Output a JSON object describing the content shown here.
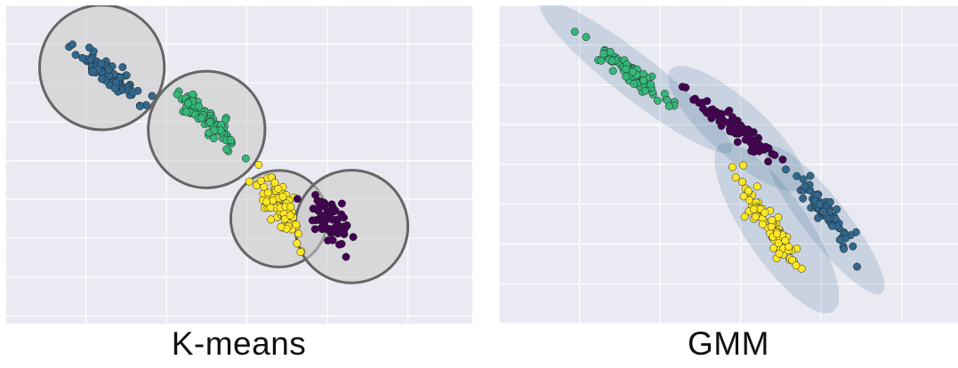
{
  "colors": {
    "background": "#eaeaf2",
    "grid": "#ffffff",
    "viridis_purple": "#440154",
    "viridis_blue": "#31688e",
    "viridis_green": "#35b779",
    "viridis_yellow": "#fde725",
    "kmeans_circle_fill": "#c8c8c8",
    "kmeans_circle_stroke": "#666666",
    "gmm_ellipse_fill": "#31688e"
  },
  "chart_data": [
    {
      "type": "scatter",
      "title": "K-means",
      "xlim": [
        0,
        11.6
      ],
      "ylim": [
        -8.2,
        0
      ],
      "grid": true,
      "legend": "none",
      "series": [
        {
          "color": "#31688e",
          "center": [
            2.6,
            -1.8
          ],
          "spread": [
            0.9,
            0.22
          ],
          "angle_deg": -40,
          "n": 90
        },
        {
          "color": "#35b779",
          "center": [
            5.0,
            -2.9
          ],
          "spread": [
            0.9,
            0.22
          ],
          "angle_deg": -40,
          "n": 90
        },
        {
          "color": "#fde725",
          "center": [
            6.8,
            -5.2
          ],
          "spread": [
            0.75,
            0.25
          ],
          "angle_deg": -58,
          "n": 90
        },
        {
          "color": "#440154",
          "center": [
            8.1,
            -5.6
          ],
          "spread": [
            0.6,
            0.3
          ],
          "angle_deg": -55,
          "n": 70
        }
      ],
      "circles": [
        {
          "center": [
            2.4,
            -1.6
          ],
          "radius": 1.55
        },
        {
          "center": [
            5.0,
            -3.2
          ],
          "radius": 1.45
        },
        {
          "center": [
            6.8,
            -5.5
          ],
          "radius": 1.2
        },
        {
          "center": [
            8.6,
            -5.7
          ],
          "radius": 1.4
        }
      ]
    },
    {
      "type": "scatter",
      "title": "GMM",
      "xlim": [
        0,
        11.4
      ],
      "ylim": [
        -8.0,
        0
      ],
      "grid": true,
      "legend": "none",
      "series": [
        {
          "color": "#35b779",
          "center": [
            3.3,
            -1.7
          ],
          "spread": [
            1.2,
            0.18
          ],
          "angle_deg": -38,
          "n": 80
        },
        {
          "color": "#440154",
          "center": [
            5.9,
            -3.1
          ],
          "spread": [
            1.1,
            0.2
          ],
          "angle_deg": -38,
          "n": 80
        },
        {
          "color": "#fde725",
          "center": [
            6.7,
            -5.5
          ],
          "spread": [
            1.2,
            0.22
          ],
          "angle_deg": -55,
          "n": 90
        },
        {
          "color": "#31688e",
          "center": [
            8.1,
            -5.2
          ],
          "spread": [
            1.05,
            0.2
          ],
          "angle_deg": -52,
          "n": 70
        }
      ],
      "ellipses": [
        {
          "center": [
            3.4,
            -1.8
          ],
          "semi_axes": [
            3.0,
            0.55
          ],
          "angle_deg": -38
        },
        {
          "center": [
            5.9,
            -3.1
          ],
          "semi_axes": [
            2.2,
            0.7
          ],
          "angle_deg": -42
        },
        {
          "center": [
            6.9,
            -5.6
          ],
          "semi_axes": [
            2.5,
            0.8
          ],
          "angle_deg": -56
        },
        {
          "center": [
            8.1,
            -5.4
          ],
          "semi_axes": [
            2.3,
            0.55
          ],
          "angle_deg": -52
        }
      ]
    }
  ]
}
